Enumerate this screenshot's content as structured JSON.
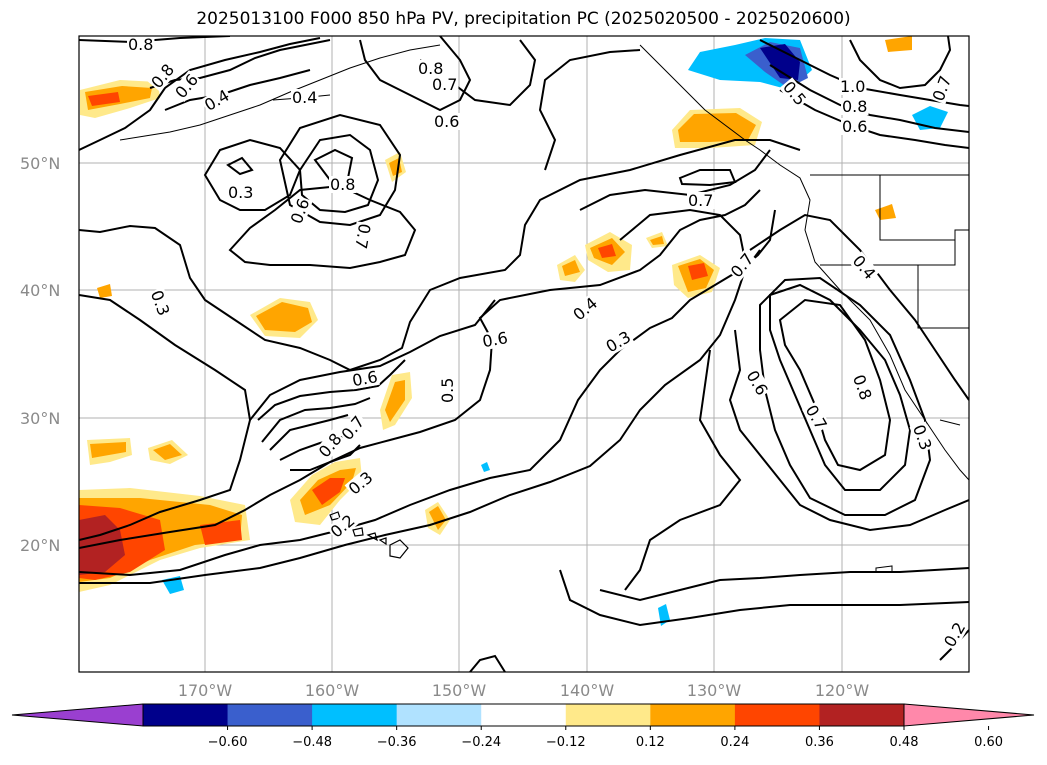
{
  "title": "2025013100 F000 850 hPa PV, precipitation PC (2025020500 - 2025020600)",
  "lat_ticks": [
    "50°N",
    "40°N",
    "30°N",
    "20°N"
  ],
  "lon_ticks": [
    "170°W",
    "160°W",
    "150°W",
    "140°W",
    "130°W",
    "120°W"
  ],
  "colorbar": {
    "ticks": [
      "−0.60",
      "−0.48",
      "−0.36",
      "−0.24",
      "−0.12",
      "0.12",
      "0.24",
      "0.36",
      "0.48",
      "0.60"
    ],
    "colors": [
      "#9a3fd0",
      "#00008b",
      "#3a5fcd",
      "#00bfff",
      "#b0e2ff",
      "#ffffff",
      "#ffe98a",
      "#ffa500",
      "#ff4500",
      "#b22222",
      "#ff88aa"
    ]
  },
  "contour_labels": [
    "0.8",
    "0.8",
    "0.6",
    "0.4",
    "0.4",
    "0.8",
    "0.7",
    "0.6",
    "0.3",
    "0.6",
    "0.8",
    "0.7",
    "1.0",
    "0.8",
    "0.6",
    "0.7",
    "0.5",
    "0.7",
    "0.7",
    "0.4",
    "0.4",
    "0.3",
    "0.3",
    "0.6",
    "0.6",
    "0.5",
    "0.7",
    "0.8",
    "0.3",
    "0.2",
    "0.6",
    "0.7",
    "0.8",
    "0.3",
    "0.2"
  ]
}
